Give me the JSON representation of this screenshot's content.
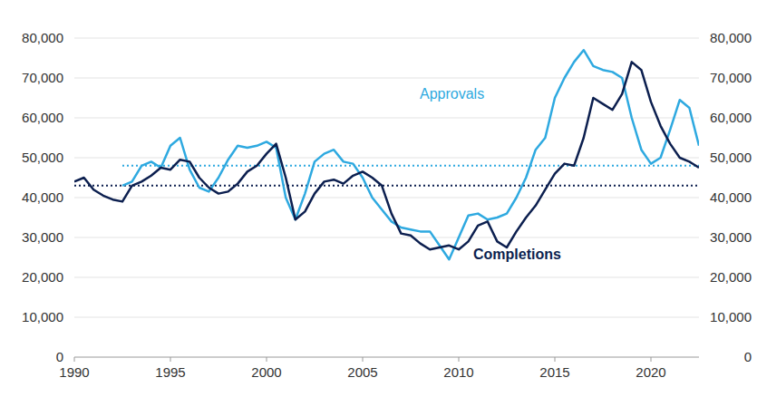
{
  "chart_data": {
    "type": "line",
    "x": [
      1990,
      1990.5,
      1991,
      1991.5,
      1992,
      1992.5,
      1993,
      1993.5,
      1994,
      1994.5,
      1995,
      1995.5,
      1996,
      1996.5,
      1997,
      1997.5,
      1998,
      1998.5,
      1999,
      1999.5,
      2000,
      2000.5,
      2001,
      2001.5,
      2002,
      2002.5,
      2003,
      2003.5,
      2004,
      2004.5,
      2005,
      2005.5,
      2006,
      2006.5,
      2007,
      2007.5,
      2008,
      2008.5,
      2009,
      2009.5,
      2010,
      2010.5,
      2011,
      2011.5,
      2012,
      2012.5,
      2013,
      2013.5,
      2014,
      2014.5,
      2015,
      2015.5,
      2016,
      2016.5,
      2017,
      2017.5,
      2018,
      2018.5,
      2019,
      2019.5,
      2020,
      2020.5,
      2021,
      2021.5,
      2022,
      2022.5
    ],
    "series": [
      {
        "name": "Approvals",
        "color": "#2ea9e0",
        "average": 48000,
        "values": [
          null,
          null,
          null,
          null,
          null,
          43000,
          44000,
          48000,
          49000,
          47500,
          53000,
          55000,
          47000,
          42500,
          41500,
          45000,
          49500,
          53000,
          52500,
          53000,
          54000,
          52500,
          40000,
          34500,
          41000,
          49000,
          51000,
          52000,
          49000,
          48500,
          45000,
          40000,
          37000,
          34000,
          32500,
          32000,
          31500,
          31500,
          28000,
          24500,
          30000,
          35500,
          36000,
          34500,
          35000,
          36000,
          40000,
          45000,
          52000,
          55000,
          65000,
          70000,
          74000,
          77000,
          73000,
          72000,
          71500,
          70000,
          60000,
          52000,
          48500,
          50000,
          57000,
          64500,
          62500,
          53000
        ]
      },
      {
        "name": "Completions",
        "color": "#0c1f4f",
        "average": 43000,
        "values": [
          44000,
          45000,
          42000,
          40500,
          39500,
          39000,
          43000,
          44000,
          45500,
          47500,
          47000,
          49500,
          49000,
          45000,
          42500,
          41000,
          41500,
          43500,
          46500,
          48000,
          51000,
          53500,
          45000,
          34500,
          36500,
          41000,
          44000,
          44500,
          43500,
          45500,
          46500,
          45000,
          43000,
          36000,
          31000,
          30500,
          28500,
          27000,
          27500,
          28000,
          27000,
          29000,
          33000,
          34000,
          29000,
          27500,
          31500,
          35000,
          38000,
          42000,
          46000,
          48500,
          48000,
          55000,
          65000,
          63500,
          62000,
          66000,
          74000,
          72000,
          64000,
          58000,
          53500,
          50000,
          49000,
          47500
        ]
      }
    ],
    "xlim": [
      1990,
      2022.5
    ],
    "xticks": [
      1990,
      1995,
      2000,
      2005,
      2010,
      2015,
      2020
    ],
    "ylim": [
      0,
      80000
    ],
    "yticks": [
      0,
      {
        "value": 10000,
        "label": "10,000"
      },
      {
        "value": 20000,
        "label": "20,000"
      },
      {
        "value": 30000,
        "label": "30,000"
      },
      {
        "value": 40000,
        "label": "40,000"
      },
      {
        "value": 50000,
        "label": "50,000"
      },
      {
        "value": 60000,
        "label": "60,000"
      },
      {
        "value": 70000,
        "label": "70,000"
      },
      {
        "value": 80000,
        "label": "80,000"
      }
    ],
    "grid": true
  }
}
